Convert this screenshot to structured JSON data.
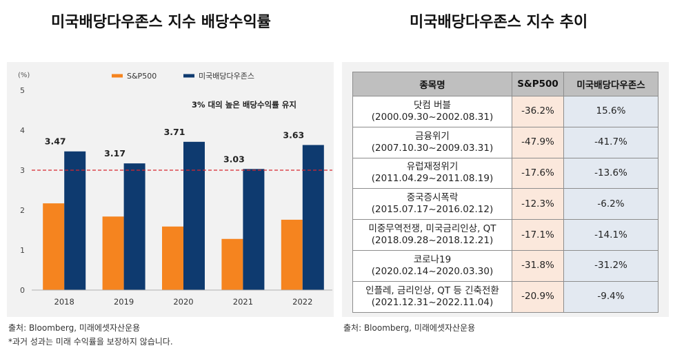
{
  "titles": {
    "left": "미국배당다우존스 지수 배당수익률",
    "right": "미국배당다우존스 지수 추이"
  },
  "colors": {
    "sp500": "#f5841f",
    "dow": "#0e3a6f",
    "threshold": "#d9262e"
  },
  "chart_data": {
    "type": "bar",
    "unit_label": "(%)",
    "categories": [
      "2018",
      "2019",
      "2020",
      "2021",
      "2022"
    ],
    "series": [
      {
        "name": "S&P500",
        "values": [
          2.17,
          1.84,
          1.59,
          1.28,
          1.76
        ]
      },
      {
        "name": "미국배당다우존스",
        "values": [
          3.47,
          3.17,
          3.71,
          3.03,
          3.63
        ]
      }
    ],
    "data_labels": [
      "3.47",
      "3.17",
      "3.71",
      "3.03",
      "3.63"
    ],
    "y_ticks": [
      "0",
      "1",
      "2",
      "3",
      "4",
      "5"
    ],
    "ylim": [
      0,
      5
    ],
    "reference_line": 3,
    "annotation": "3% 대의 높은 배당수익률 유지",
    "legend_position": "top"
  },
  "table": {
    "headers": [
      "종목명",
      "S&P500",
      "미국배당다우존스"
    ],
    "rows": [
      {
        "name": "닷컴 버블",
        "period": "(2000.09.30~2002.08.31)",
        "sp": "-36.2%",
        "dow": "15.6%"
      },
      {
        "name": "금융위기",
        "period": "(2007.10.30~2009.03.31)",
        "sp": "-47.9%",
        "dow": "-41.7%"
      },
      {
        "name": "유럽재정위기",
        "period": "(2011.04.29~2011.08.19)",
        "sp": "-17.6%",
        "dow": "-13.6%"
      },
      {
        "name": "중국증시폭락",
        "period": "(2015.07.17~2016.02.12)",
        "sp": "-12.3%",
        "dow": "-6.2%"
      },
      {
        "name": "미중무역전쟁, 미국금리인상, QT",
        "period": "(2018.09.28~2018.12.21)",
        "sp": "-17.1%",
        "dow": "-14.1%"
      },
      {
        "name": "코로나19",
        "period": "(2020.02.14~2020.03.30)",
        "sp": "-31.8%",
        "dow": "-31.2%"
      },
      {
        "name": "인플레, 금리인상, QT 등 긴축전환",
        "period": "(2021.12.31~2022.11.04)",
        "sp": "-20.9%",
        "dow": "-9.4%"
      }
    ]
  },
  "footer": {
    "left_source": "출처: Bloomberg, 미래에셋자산운용",
    "left_note": "*과거 성과는 미래 수익률을 보장하지 않습니다.",
    "right_source": "출처: Bloomberg, 미래에셋자산운용"
  }
}
